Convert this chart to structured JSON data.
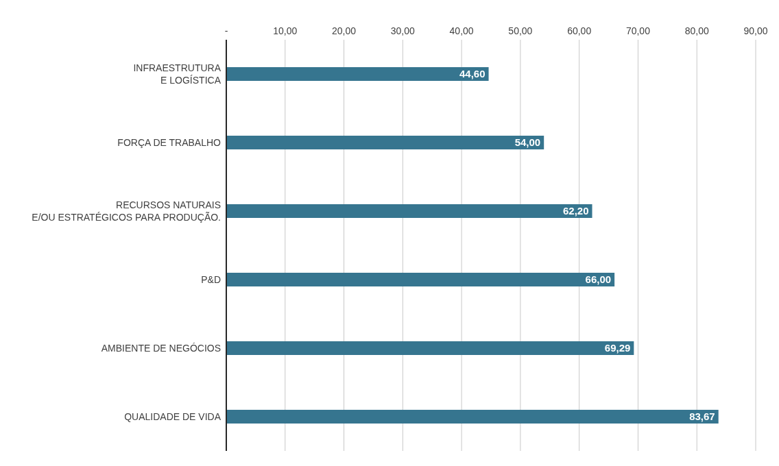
{
  "chart_data": {
    "type": "bar",
    "orientation": "horizontal",
    "categories": [
      "INFRAESTRUTURA\nE LOGÍSTICA",
      "FORÇA DE TRABALHO",
      "RECURSOS NATURAIS\nE/OU ESTRATÉGICOS PARA PRODUÇÃO.",
      "P&D",
      "AMBIENTE DE NEGÓCIOS",
      "QUALIDADE DE VIDA"
    ],
    "values": [
      44.6,
      54.0,
      62.2,
      66.0,
      69.29,
      83.67
    ],
    "value_labels": [
      "44,60",
      "54,00",
      "62,20",
      "66,00",
      "69,29",
      "83,67"
    ],
    "color": "#36758f",
    "xlim": [
      0,
      90
    ],
    "xticks": [
      {
        "value": 0,
        "label": "-"
      },
      {
        "value": 10,
        "label": "10,00"
      },
      {
        "value": 20,
        "label": "20,00"
      },
      {
        "value": 30,
        "label": "30,00"
      },
      {
        "value": 40,
        "label": "40,00"
      },
      {
        "value": 50,
        "label": "50,00"
      },
      {
        "value": 60,
        "label": "60,00"
      },
      {
        "value": 70,
        "label": "70,00"
      },
      {
        "value": 80,
        "label": "80,00"
      },
      {
        "value": 90,
        "label": "90,00"
      }
    ],
    "grid": "x"
  }
}
